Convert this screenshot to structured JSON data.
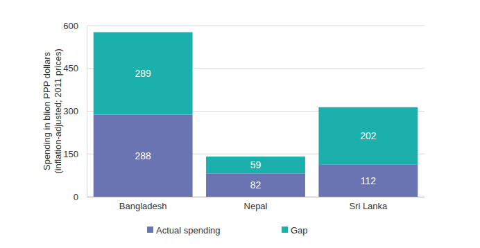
{
  "chart_data": {
    "type": "bar",
    "stacked": true,
    "data_labels": true,
    "grid": true,
    "legend": "bottom",
    "y_label": [
      "Spending in blion PPP dollars",
      "(inflation-adjusted; 2011 prices)"
    ],
    "categories": [
      "Bangladesh",
      "Nepal",
      "Sri Lanka"
    ],
    "series": [
      {
        "name": "Actual spending",
        "color": "#6b74b3",
        "values": [
          288,
          82,
          112
        ]
      },
      {
        "name": "Gap",
        "color": "#1bb0ab",
        "values": [
          289,
          59,
          202
        ]
      }
    ],
    "ylim": [
      0,
      600
    ],
    "yticks": [
      0,
      150,
      300,
      450,
      600
    ]
  }
}
